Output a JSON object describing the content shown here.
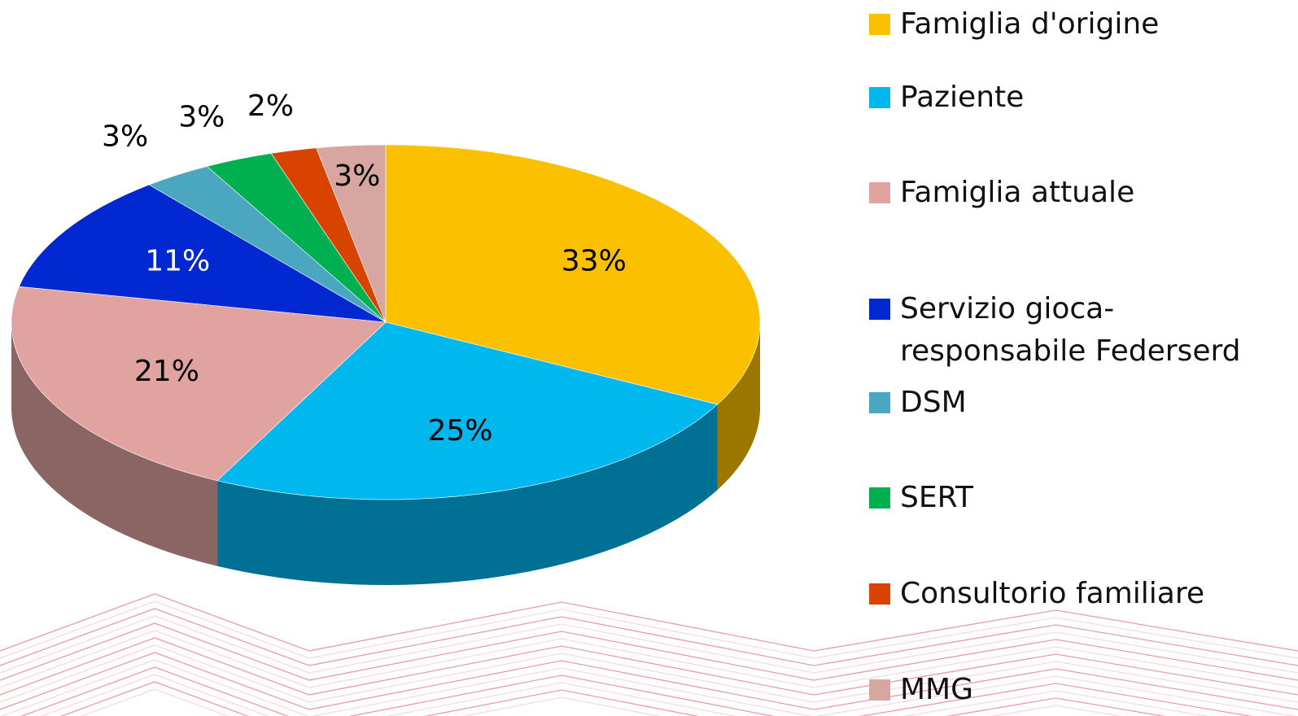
{
  "chart_data": {
    "type": "pie",
    "categories": [
      "Famiglia d'origine",
      "Paziente",
      "Famiglia attuale",
      "Servizio gioca-responsabile Federserd",
      "DSM",
      "SERT",
      "Consultorio familiare",
      "MMG"
    ],
    "values": [
      33,
      25,
      21,
      11,
      3,
      3,
      2,
      3
    ],
    "value_labels": [
      "33%",
      "25%",
      "21%",
      "11%",
      "3%",
      "3%",
      "2%",
      "3%"
    ],
    "colors": [
      "#fbc000",
      "#00b7ee",
      "#e0a3a0",
      "#0228d2",
      "#4ba6c0",
      "#00b050",
      "#d84300",
      "#d8a6a0"
    ],
    "legend": "right"
  }
}
